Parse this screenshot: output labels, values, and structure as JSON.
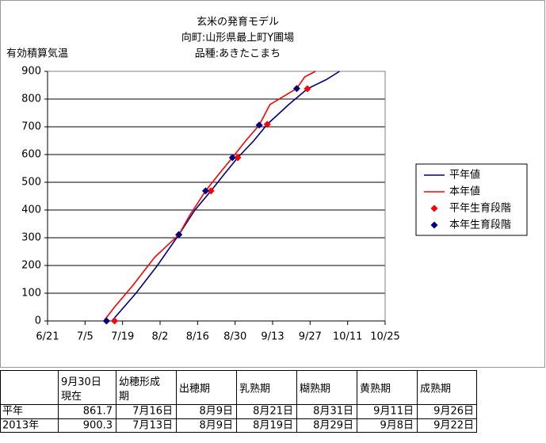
{
  "chart_data": {
    "type": "line",
    "title": "玄米の発育モデル",
    "subtitle": [
      "向町:山形県最上町Y圃場",
      "品種:あきたこまち"
    ],
    "ylabel": "有効積算気温",
    "xlim": [
      172,
      298
    ],
    "xticks": [
      {
        "value": 172,
        "label": "6/21"
      },
      {
        "value": 186,
        "label": "7/5"
      },
      {
        "value": 200,
        "label": "7/19"
      },
      {
        "value": 214,
        "label": "8/2"
      },
      {
        "value": 228,
        "label": "8/16"
      },
      {
        "value": 242,
        "label": "8/30"
      },
      {
        "value": 256,
        "label": "9/13"
      },
      {
        "value": 270,
        "label": "9/27"
      },
      {
        "value": 284,
        "label": "10/11"
      },
      {
        "value": 298,
        "label": "10/25"
      }
    ],
    "ylim": [
      0,
      900
    ],
    "yticks": [
      0,
      100,
      200,
      300,
      400,
      500,
      600,
      700,
      800,
      900
    ],
    "grid": true,
    "legend": "right",
    "series": [
      {
        "name": "平年値",
        "type": "line",
        "color": "#000080",
        "x": [
          196,
          205,
          213,
          221,
          227,
          233,
          238,
          243,
          249,
          254,
          262,
          269,
          276,
          281
        ],
        "values": [
          0,
          100,
          200,
          311,
          400,
          469,
          530,
          589,
          650,
          709,
          780,
          837,
          870,
          900
        ]
      },
      {
        "name": "本年値",
        "type": "line",
        "color": "#ff0000",
        "x": [
          193,
          197,
          204,
          212,
          221,
          225,
          231,
          236,
          241,
          246,
          251,
          255,
          265,
          268,
          272
        ],
        "values": [
          0,
          50,
          130,
          230,
          311,
          380,
          469,
          530,
          589,
          650,
          706,
          780,
          838,
          880,
          900
        ]
      },
      {
        "name": "平年生育段階",
        "type": "scatter",
        "color": "#ff0000",
        "x": [
          197,
          221,
          233,
          243,
          254,
          269
        ],
        "values": [
          0,
          311,
          469,
          589,
          709,
          837
        ]
      },
      {
        "name": "本年生育段階",
        "type": "scatter",
        "color": "#000080",
        "x": [
          194,
          221,
          231,
          241,
          251,
          265
        ],
        "values": [
          0,
          311,
          469,
          589,
          706,
          838
        ]
      }
    ]
  },
  "table": {
    "header": [
      "9月30日\n現在",
      "幼穂形成期",
      "出穂期",
      "乳熟期",
      "糊熟期",
      "黄熟期",
      "成熟期"
    ],
    "rows": [
      [
        "平年",
        "861.7",
        "7月16日",
        "8月9日",
        "8月21日",
        "8月31日",
        "9月11日",
        "9月26日"
      ],
      [
        "2013年",
        "900.3",
        "7月13日",
        "8月9日",
        "8月19日",
        "8月29日",
        "9月8日",
        "9月22日"
      ]
    ]
  }
}
